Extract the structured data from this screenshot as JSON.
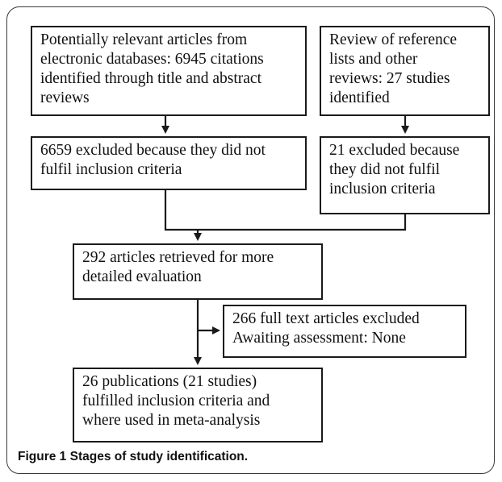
{
  "flowchart": {
    "nodes": [
      {
        "id": "databases",
        "text": "Potentially relevant articles from\nelectronic databases: 6945 citations\nidentified through title and abstract\nreviews"
      },
      {
        "id": "references",
        "text": "Review of reference\nlists and other\nreviews: 27 studies\nidentified"
      },
      {
        "id": "db_excluded",
        "text": "6659 excluded because they did not\nfulfil inclusion criteria"
      },
      {
        "id": "ref_excluded",
        "text": "21 excluded because\nthey did not fulfil\ninclusion criteria"
      },
      {
        "id": "retrieved",
        "text": "292 articles retrieved for more\ndetailed evaluation"
      },
      {
        "id": "fulltext_excluded",
        "text": "266 full text articles excluded\nAwaiting assessment: None"
      },
      {
        "id": "included",
        "text": "26 publications (21 studies)\nfulfilled inclusion criteria and\nwhere used in meta-analysis"
      }
    ],
    "edges": [
      {
        "from": "databases",
        "to": "db_excluded"
      },
      {
        "from": "references",
        "to": "ref_excluded"
      },
      {
        "from": "db_excluded",
        "to": "retrieved"
      },
      {
        "from": "ref_excluded",
        "to": "retrieved"
      },
      {
        "from": "retrieved",
        "to": "fulltext_excluded"
      },
      {
        "from": "retrieved",
        "to": "included"
      }
    ]
  },
  "caption": {
    "label": "Figure 1",
    "text": "Stages of study identification."
  }
}
